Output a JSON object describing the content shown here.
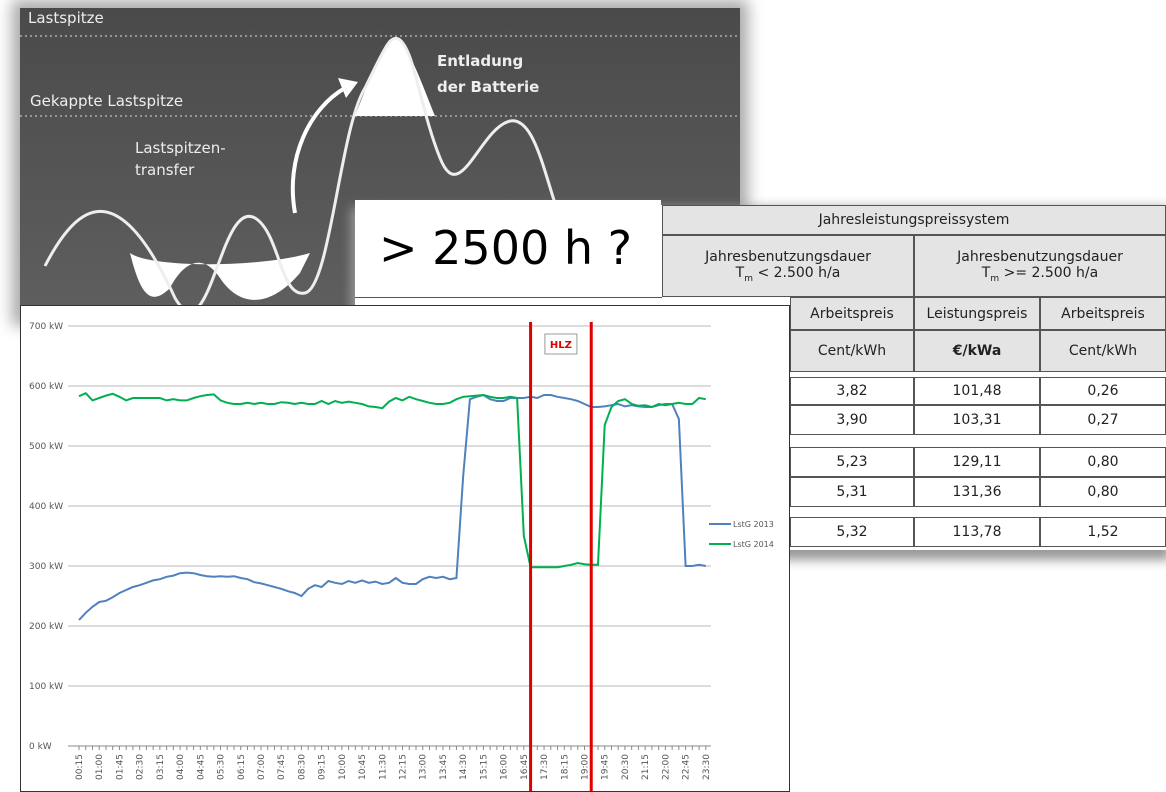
{
  "background_diagram": {
    "peak": "Lastspitze",
    "capped_peak": "Gekappte Lastspitze",
    "transfer": [
      "Lastspitzen-",
      "transfer"
    ],
    "discharge": [
      "Entladung",
      "der Batterie"
    ]
  },
  "question": "> 2500 h ?",
  "table": {
    "title": "Jahresleistungspreissystem",
    "groups": [
      {
        "label": "Jahresbenutzungsdauer",
        "symbol": "T",
        "sub": "m",
        "condition": " < 2.500 h/a"
      },
      {
        "label": "Jahresbenutzungsdauer",
        "symbol": "T",
        "sub": "m",
        "condition": " >= 2.500 h/a"
      }
    ],
    "columns": [
      "Arbeitspreis",
      "Leistungspreis",
      "Arbeitspreis"
    ],
    "units": [
      "Cent/kWh",
      "€/kWa",
      "Cent/kWh"
    ],
    "rows": [
      [
        "3,82",
        "101,48",
        "0,26"
      ],
      [
        "3,90",
        "103,31",
        "0,27"
      ],
      [
        "5,23",
        "129,11",
        "0,80"
      ],
      [
        "5,31",
        "131,36",
        "0,80"
      ],
      [
        "5,32",
        "113,78",
        "1,52"
      ]
    ]
  },
  "chart_data": {
    "type": "line",
    "categories": [
      "00:15",
      null,
      null,
      "01:00",
      null,
      null,
      "01:45",
      null,
      null,
      "02:30",
      null,
      null,
      "03:15",
      null,
      null,
      "04:00",
      null,
      null,
      "04:45",
      null,
      null,
      "05:30",
      null,
      null,
      "06:15",
      null,
      null,
      "07:00",
      null,
      null,
      "07:45",
      null,
      null,
      "08:30",
      null,
      null,
      "09:15",
      null,
      null,
      "10:00",
      null,
      null,
      "10:45",
      null,
      null,
      "11:30",
      null,
      null,
      "12:15",
      null,
      null,
      "13:00",
      null,
      null,
      "13:45",
      null,
      null,
      "14:30",
      null,
      null,
      "15:15",
      null,
      null,
      "16:00",
      null,
      null,
      "16:45",
      null,
      null,
      "17:30",
      null,
      null,
      "18:15",
      null,
      null,
      "19:00",
      null,
      null,
      "19:45",
      null,
      null,
      "20:30",
      null,
      null,
      "21:15",
      null,
      null,
      "22:00",
      null,
      null,
      "22:45",
      null,
      null,
      "23:30"
    ],
    "series": [
      {
        "name": "LstG 2013",
        "color": "#4f81bd",
        "values": [
          210,
          222,
          232,
          240,
          242,
          248,
          255,
          260,
          265,
          268,
          272,
          276,
          278,
          282,
          284,
          288,
          289,
          288,
          285,
          283,
          282,
          283,
          282,
          283,
          280,
          278,
          273,
          271,
          268,
          265,
          262,
          258,
          255,
          250,
          262,
          268,
          265,
          275,
          272,
          270,
          275,
          272,
          276,
          272,
          274,
          270,
          272,
          280,
          272,
          270,
          270,
          278,
          282,
          280,
          282,
          278,
          280,
          450,
          578,
          582,
          585,
          578,
          575,
          575,
          580,
          580,
          580,
          582,
          580,
          585,
          585,
          582,
          580,
          578,
          575,
          570,
          565,
          565,
          566,
          568,
          570,
          566,
          568,
          566,
          565,
          565,
          568,
          570,
          570,
          545,
          300,
          300,
          302,
          300
        ]
      },
      {
        "name": "LstG 2014",
        "color": "#00b050",
        "values": [
          583,
          588,
          576,
          580,
          584,
          587,
          582,
          576,
          580,
          580,
          580,
          580,
          580,
          576,
          578,
          576,
          576,
          580,
          583,
          585,
          586,
          576,
          572,
          570,
          570,
          572,
          570,
          572,
          570,
          570,
          573,
          572,
          570,
          572,
          570,
          570,
          575,
          570,
          575,
          572,
          574,
          572,
          570,
          566,
          565,
          563,
          574,
          580,
          576,
          582,
          578,
          575,
          572,
          570,
          570,
          572,
          578,
          582,
          583,
          584,
          585,
          582,
          580,
          580,
          582,
          580,
          350,
          298,
          298,
          298,
          298,
          298,
          300,
          302,
          305,
          303,
          302,
          302,
          535,
          565,
          575,
          578,
          570,
          567,
          568,
          565,
          570,
          568,
          570,
          572,
          570,
          570,
          580,
          578
        ]
      }
    ],
    "ylim": [
      0,
      700
    ],
    "yticks": [
      {
        "value": 0,
        "label": "0 kW"
      },
      {
        "value": 100,
        "label": "100 kW"
      },
      {
        "value": 200,
        "label": "200 kW"
      },
      {
        "value": 300,
        "label": "300 kW"
      },
      {
        "value": 400,
        "label": "400 kW"
      },
      {
        "value": 500,
        "label": "500 kW"
      },
      {
        "value": 600,
        "label": "600 kW"
      },
      {
        "value": 700,
        "label": "700 kW"
      }
    ],
    "grid": true,
    "legend": "right",
    "annotation": {
      "text": "HLZ",
      "color": "#e00000",
      "x_start": 67,
      "x_end": 76
    }
  }
}
